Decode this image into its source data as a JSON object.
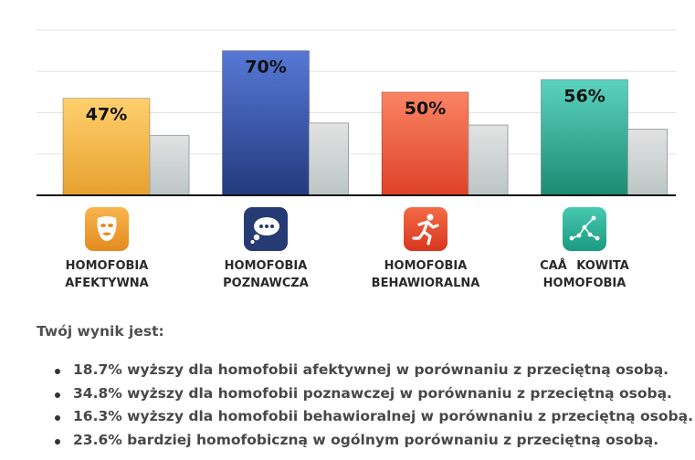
{
  "chart_data": {
    "type": "bar",
    "categories": [
      "HOMOFOBIA AFEKTYWNA",
      "HOMOFOBIA POZNAWCZA",
      "HOMOFOBIA BEHAWIORALNA",
      "CAÅKOWITA HOMOFOBIA"
    ],
    "category_label_lines": [
      [
        "HOMOFOBIA",
        "AFEKTYWNA"
      ],
      [
        "HOMOFOBIA",
        "POZNAWCZA"
      ],
      [
        "HOMOFOBIA",
        "BEHAWIORALNA"
      ],
      [
        "CAÅKOWITA",
        "HOMOFOBIA"
      ]
    ],
    "series": [
      {
        "values": [
          47,
          70,
          50,
          56
        ],
        "data_labels": [
          "47%",
          "70%",
          "50%",
          "56%"
        ]
      },
      {
        "values": [
          29,
          35,
          34,
          32
        ]
      }
    ],
    "ylim": [
      0,
      80
    ],
    "grid": true,
    "legend": "none",
    "colors": {
      "bar_gradients": [
        [
          "#ffd06e",
          "#e7a12f"
        ],
        [
          "#5678d6",
          "#233a7e"
        ],
        [
          "#fa8464",
          "#dd4228"
        ],
        [
          "#5bd2be",
          "#1c8a72"
        ]
      ],
      "comparison_gradient": [
        "#e2e2e2",
        "#bcc5c5"
      ],
      "grid": "#e3e3e3",
      "axis": "#111111"
    }
  },
  "icons": [
    {
      "name": "mask-icon",
      "color": "#ef9f33"
    },
    {
      "name": "thought-bubble-icon",
      "color": "#263a73"
    },
    {
      "name": "running-person-icon",
      "color": "#e34a2f"
    },
    {
      "name": "constellation-icon",
      "color": "#22a48c"
    }
  ],
  "summary": {
    "heading": "Twój wynik jest:",
    "items": [
      "18.7% wyższy dla homofobii afektywnej w porównaniu z przeciętną osobą.",
      "34.8% wyższy dla homofobii poznawczej w porównaniu z przeciętną osobą.",
      "16.3% wyższy dla homofobii behawioralnej w porównaniu z przeciętną osobą.",
      "23.6% bardziej homofobiczną w ogólnym porównaniu z przeciętną osobą."
    ]
  }
}
